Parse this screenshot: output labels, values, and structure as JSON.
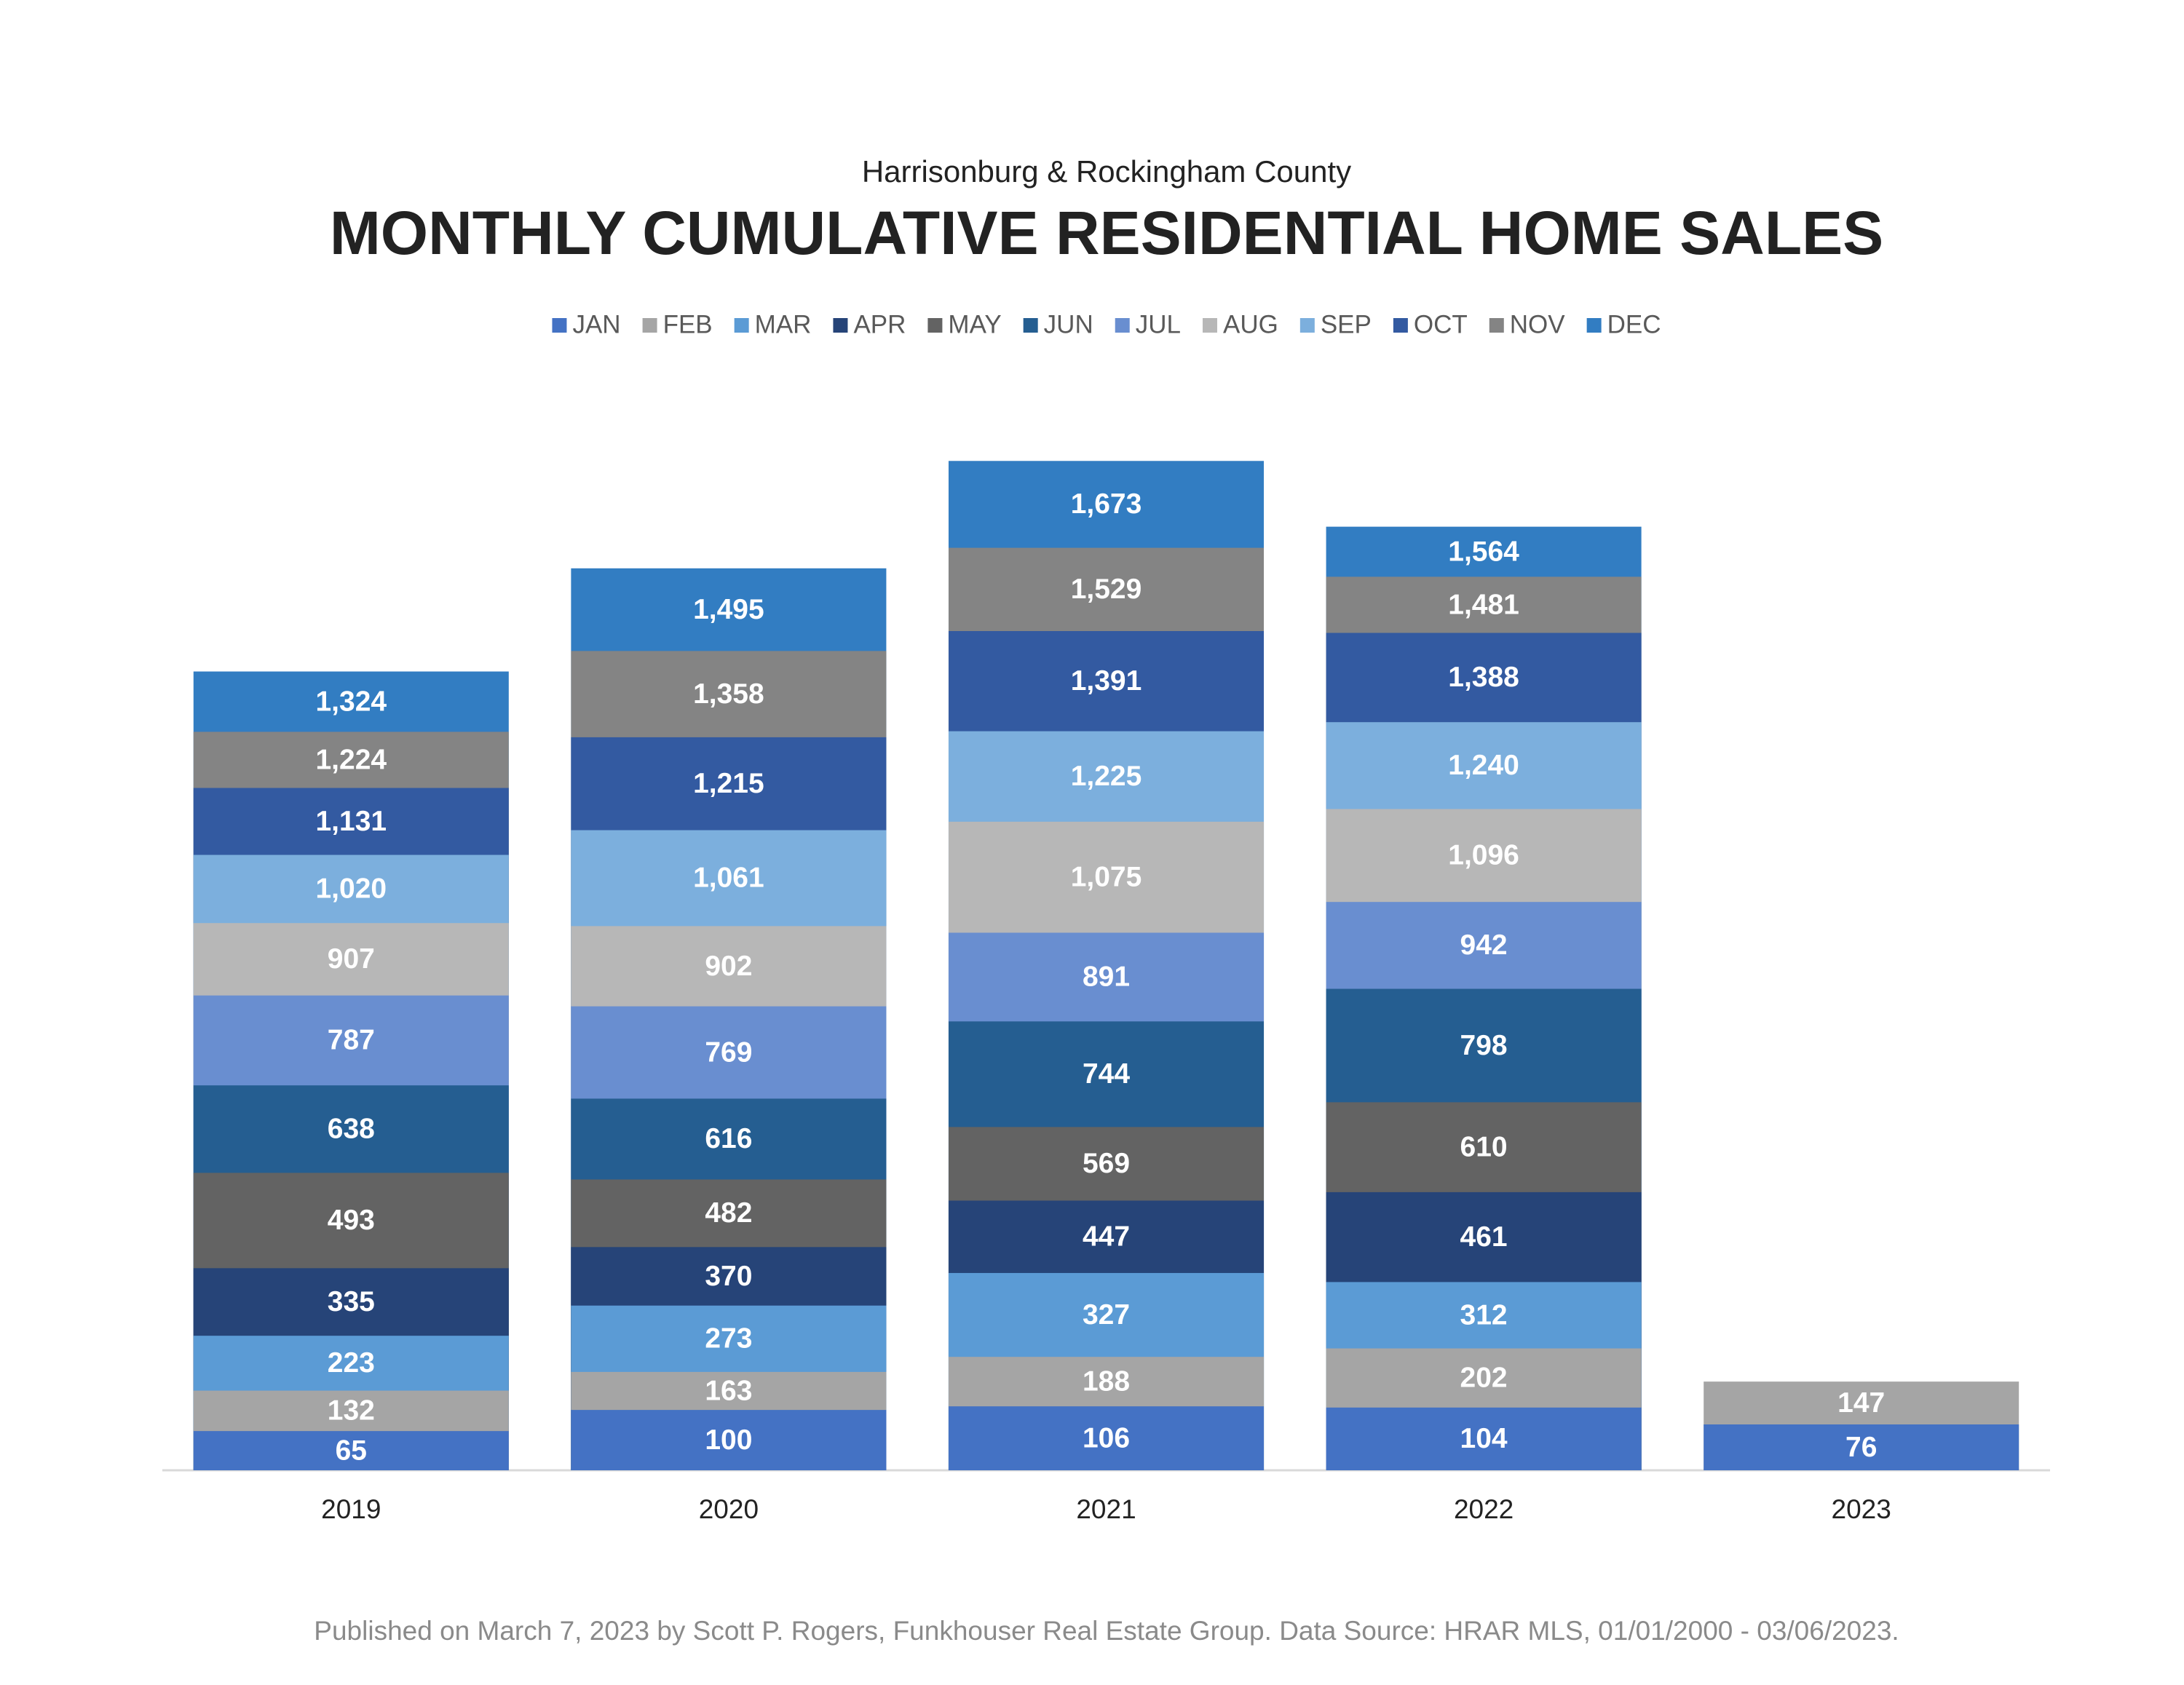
{
  "chart_data": {
    "type": "bar",
    "bar_mode": "overlap",
    "legend": "top",
    "subtitle": "Harrisonburg & Rockingham County",
    "title": "MONTHLY CUMULATIVE RESIDENTIAL HOME SALES",
    "footnote": "Published on March 7, 2023 by Scott P. Rogers, Funkhouser Real Estate Group. Data Source: HRAR MLS, 01/01/2000 - 03/06/2023.",
    "categories": [
      "2019",
      "2020",
      "2021",
      "2022",
      "2023"
    ],
    "ylim": [
      0,
      1800
    ],
    "series": [
      {
        "name": "JAN",
        "color": "#4472c4",
        "values": [
          65,
          100,
          106,
          104,
          76
        ],
        "value_labels": [
          "65",
          "100",
          "106",
          "104",
          "76"
        ]
      },
      {
        "name": "FEB",
        "color": "#a5a5a5",
        "values": [
          132,
          163,
          188,
          202,
          147
        ],
        "value_labels": [
          "132",
          "163",
          "188",
          "202",
          "147"
        ]
      },
      {
        "name": "MAR",
        "color": "#5b9bd5",
        "values": [
          223,
          273,
          327,
          312,
          null
        ],
        "value_labels": [
          "223",
          "273",
          "327",
          "312",
          null
        ]
      },
      {
        "name": "APR",
        "color": "#264478",
        "values": [
          335,
          370,
          447,
          461,
          null
        ],
        "value_labels": [
          "335",
          "370",
          "447",
          "461",
          null
        ]
      },
      {
        "name": "MAY",
        "color": "#636363",
        "values": [
          493,
          482,
          569,
          610,
          null
        ],
        "value_labels": [
          "493",
          "482",
          "569",
          "610",
          null
        ]
      },
      {
        "name": "JUN",
        "color": "#255e91",
        "values": [
          638,
          616,
          744,
          798,
          null
        ],
        "value_labels": [
          "638",
          "616",
          "744",
          "798",
          null
        ]
      },
      {
        "name": "JUL",
        "color": "#698ed0",
        "values": [
          787,
          769,
          891,
          942,
          null
        ],
        "value_labels": [
          "787",
          "769",
          "891",
          "942",
          null
        ]
      },
      {
        "name": "AUG",
        "color": "#b7b7b7",
        "values": [
          907,
          902,
          1075,
          1096,
          null
        ],
        "value_labels": [
          "907",
          "902",
          "1,075",
          "1,096",
          null
        ]
      },
      {
        "name": "SEP",
        "color": "#7cafdd",
        "values": [
          1020,
          1061,
          1225,
          1240,
          null
        ],
        "value_labels": [
          "1,020",
          "1,061",
          "1,225",
          "1,240",
          null
        ]
      },
      {
        "name": "OCT",
        "color": "#335aa1",
        "values": [
          1131,
          1215,
          1391,
          1388,
          null
        ],
        "value_labels": [
          "1,131",
          "1,215",
          "1,391",
          "1,388",
          null
        ]
      },
      {
        "name": "NOV",
        "color": "#848484",
        "values": [
          1224,
          1358,
          1529,
          1481,
          null
        ],
        "value_labels": [
          "1,224",
          "1,358",
          "1,529",
          "1,481",
          null
        ]
      },
      {
        "name": "DEC",
        "color": "#327dc2",
        "values": [
          1324,
          1495,
          1673,
          1564,
          null
        ],
        "value_labels": [
          "1,324",
          "1,495",
          "1,673",
          "1,564",
          null
        ]
      }
    ]
  }
}
